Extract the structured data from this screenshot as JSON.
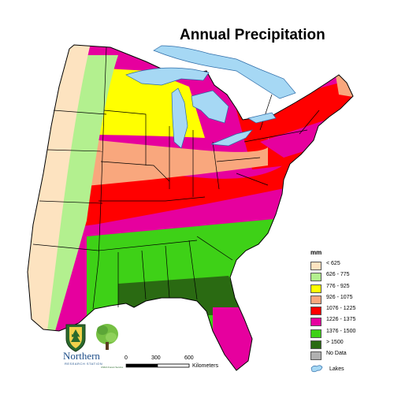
{
  "map": {
    "title": "Annual Precipitation",
    "legend": {
      "unit": "mm",
      "classes": [
        {
          "label": "< 625",
          "color": "#fde3c0"
        },
        {
          "label": "626 - 775",
          "color": "#b3f08f"
        },
        {
          "label": "776 - 925",
          "color": "#ffff00"
        },
        {
          "label": "926 - 1075",
          "color": "#f9a77d"
        },
        {
          "label": "1076 - 1225",
          "color": "#ff0000"
        },
        {
          "label": "1226 - 1375",
          "color": "#e6009e"
        },
        {
          "label": "1376 - 1500",
          "color": "#3ed117"
        },
        {
          "label": "> 1500",
          "color": "#2a6a12"
        },
        {
          "label": "No Data",
          "color": "#b0b0b0"
        }
      ],
      "lakes": {
        "label": "Lakes",
        "color": "#a6d8f4"
      }
    },
    "scale_bar": {
      "ticks": [
        "0",
        "300",
        "600"
      ],
      "unit": "Kilometers"
    },
    "logo": {
      "shield_text": "USA",
      "name": "Northern",
      "subtitle": "RESEARCH STATION",
      "footnote": "USDA Forest Service"
    }
  }
}
